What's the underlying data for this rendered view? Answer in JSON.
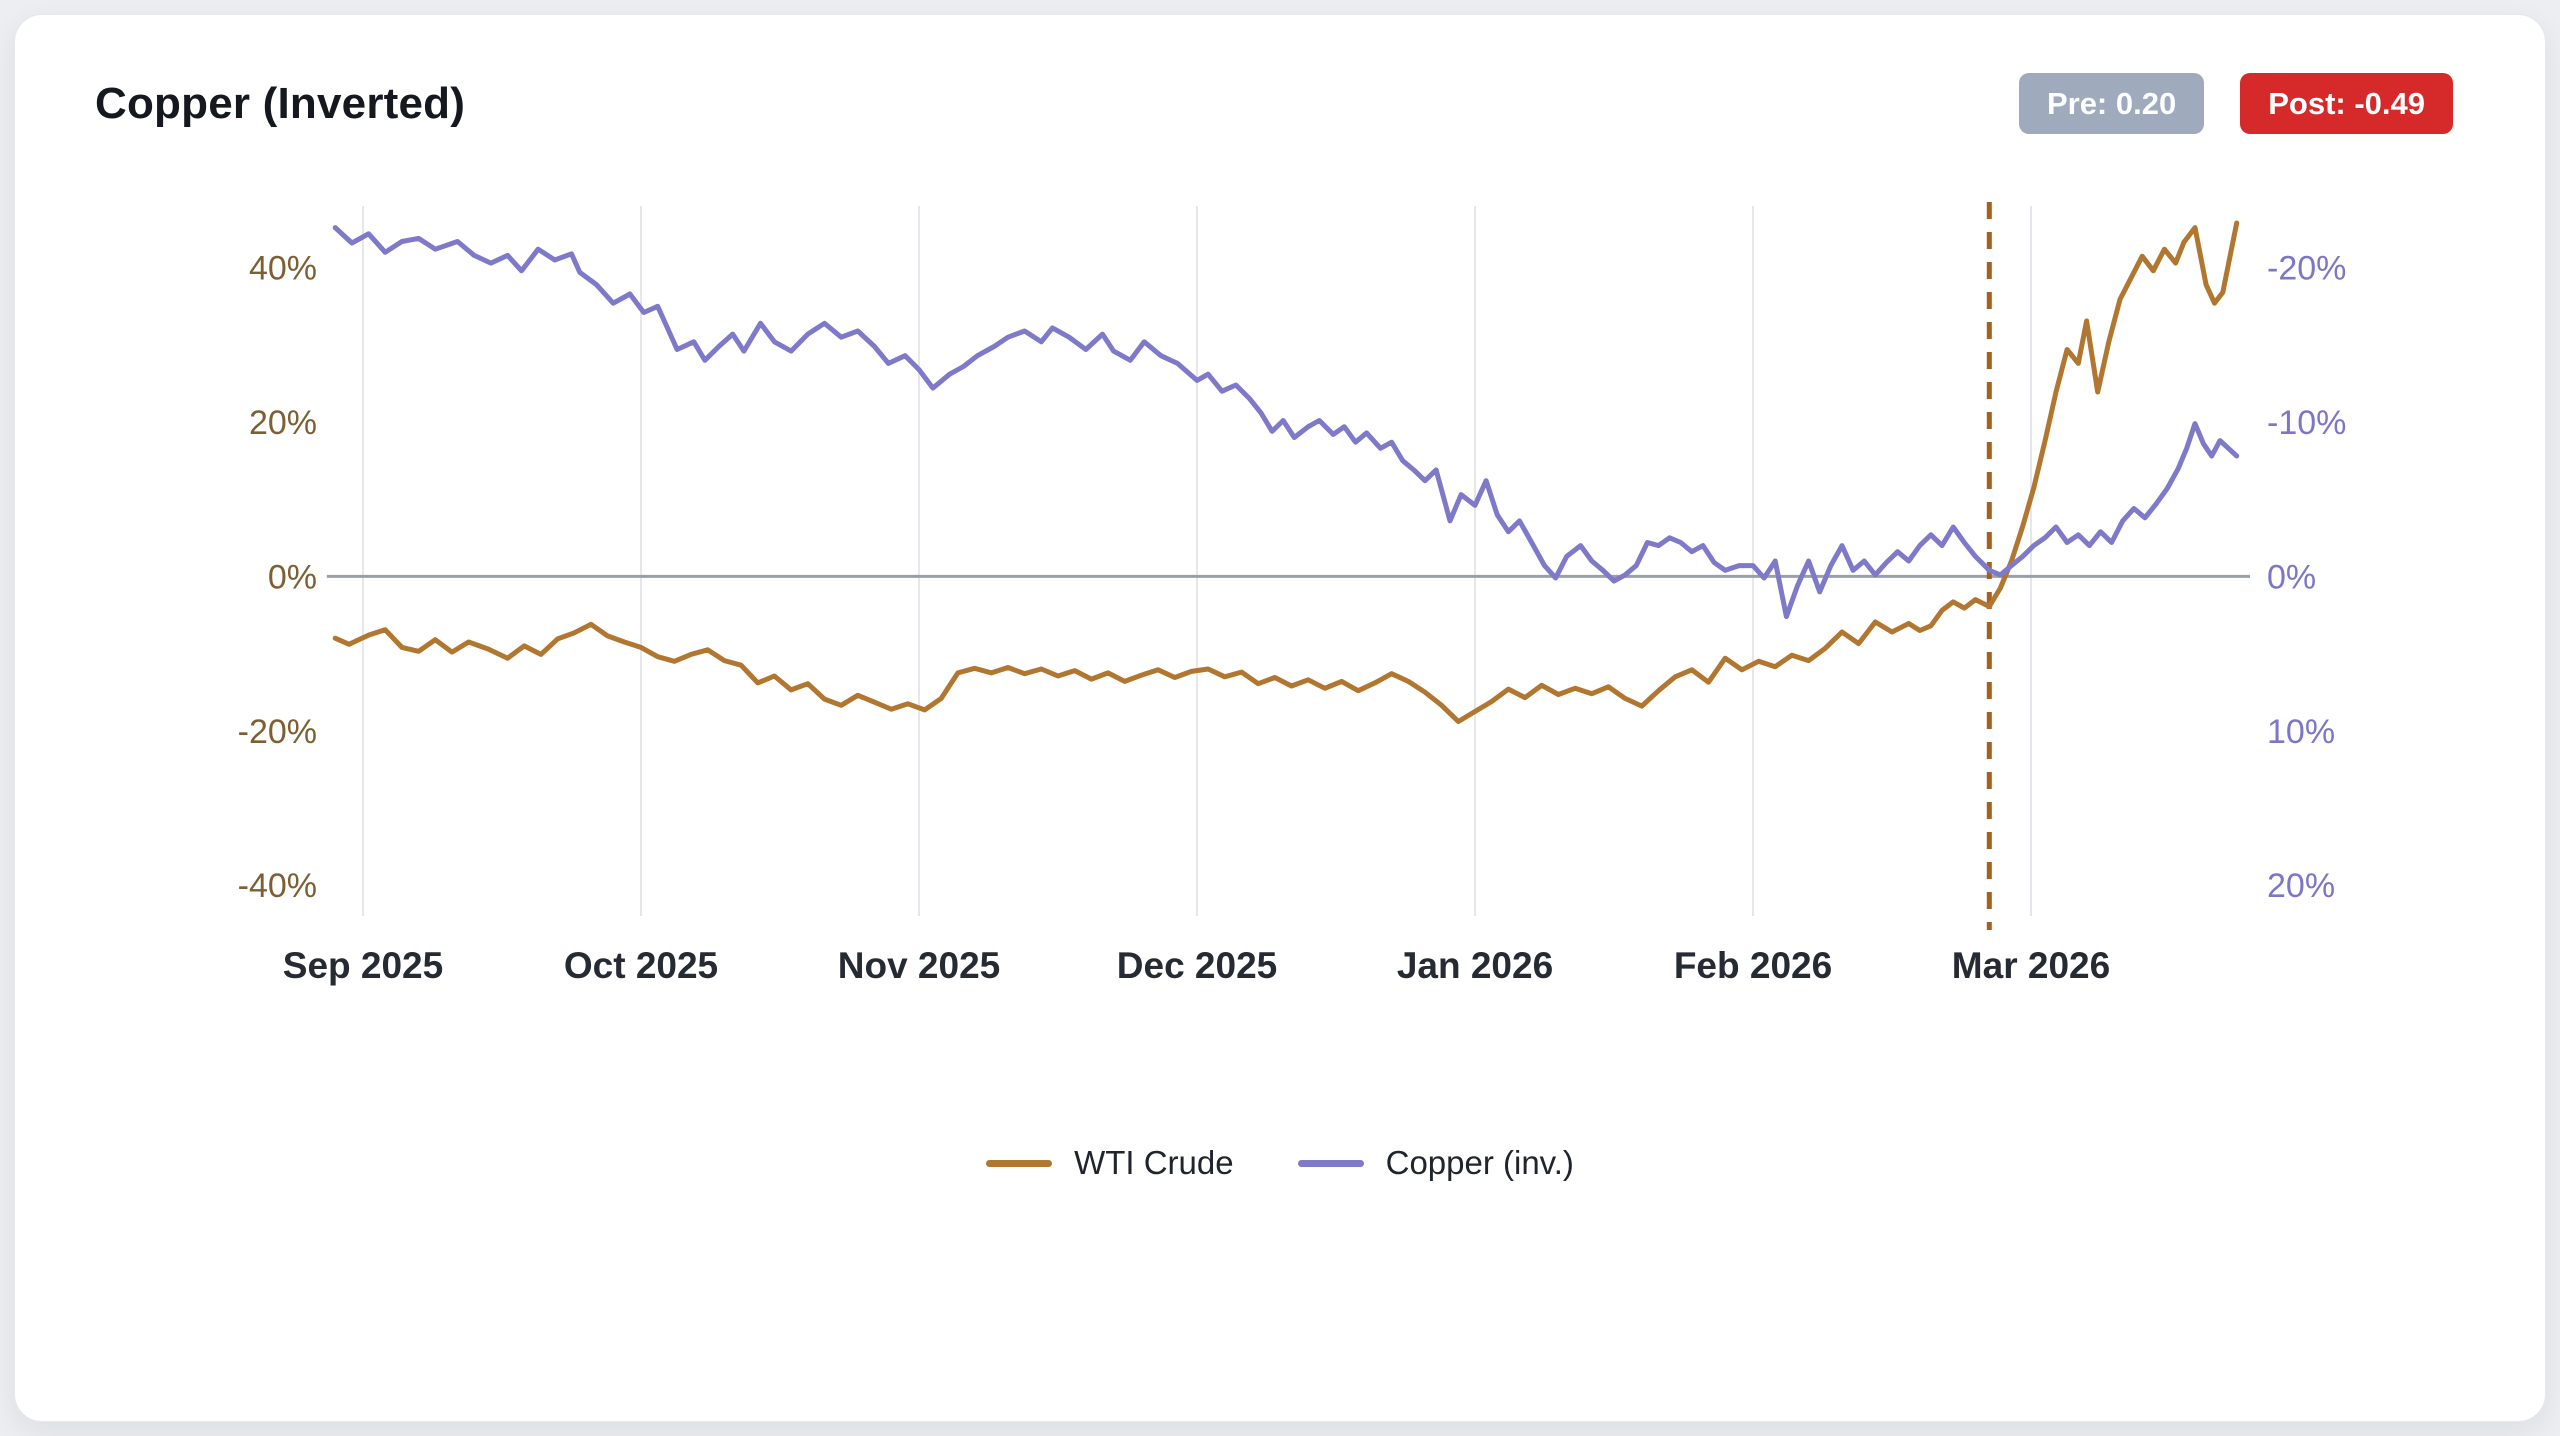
{
  "header": {
    "title": "Copper (Inverted)",
    "pre_badge": "Pre: 0.20",
    "post_badge": "Post: -0.49"
  },
  "legend": {
    "items": [
      {
        "label": "WTI Crude",
        "color": "#b1762f"
      },
      {
        "label": "Copper (inv.)",
        "color": "#7f79ca"
      }
    ]
  },
  "colors": {
    "grid": "#e4e7ec",
    "zero_line": "#9aa0a8",
    "x_tick_text": "#252a33",
    "left_tick_text": "#7e5f33",
    "right_tick_text": "#7c76c6",
    "badge_pre_bg": "#9fabbc",
    "badge_post_bg": "#d62a2a"
  },
  "chart_data": {
    "type": "line",
    "title": "Copper (Inverted)",
    "x_unit": "months since Sep 2025 tick",
    "x_range": [
      -0.13,
      6.78
    ],
    "x_ticks": [
      {
        "x": 0,
        "label": "Sep 2025"
      },
      {
        "x": 1,
        "label": "Oct 2025"
      },
      {
        "x": 2,
        "label": "Nov 2025"
      },
      {
        "x": 3,
        "label": "Dec 2025"
      },
      {
        "x": 4,
        "label": "Jan 2026"
      },
      {
        "x": 5,
        "label": "Feb 2026"
      },
      {
        "x": 6,
        "label": "Mar 2026"
      }
    ],
    "left_axis": {
      "range": [
        -44,
        48
      ],
      "ticks": [
        {
          "v": 40,
          "label": "40%"
        },
        {
          "v": 20,
          "label": "20%"
        },
        {
          "v": 0,
          "label": "0%"
        },
        {
          "v": -20,
          "label": "-20%"
        },
        {
          "v": -40,
          "label": "-40%"
        }
      ]
    },
    "right_axis": {
      "inverted": true,
      "scale_vs_left": -0.5,
      "ticks": [
        {
          "v": -20,
          "label": "-20%"
        },
        {
          "v": -10,
          "label": "-10%"
        },
        {
          "v": 0,
          "label": "0%"
        },
        {
          "v": 10,
          "label": "10%"
        },
        {
          "v": 20,
          "label": "20%"
        }
      ]
    },
    "zero_line": true,
    "event_line": {
      "x": 5.85,
      "style": "dashed",
      "color": "#a2611d"
    },
    "series": [
      {
        "name": "WTI Crude",
        "axis": "left",
        "color": "#b1762f",
        "points": [
          [
            -0.1,
            -8.0
          ],
          [
            -0.05,
            -8.8
          ],
          [
            0.02,
            -7.6
          ],
          [
            0.08,
            -6.9
          ],
          [
            0.14,
            -9.2
          ],
          [
            0.2,
            -9.7
          ],
          [
            0.26,
            -8.2
          ],
          [
            0.32,
            -9.8
          ],
          [
            0.38,
            -8.5
          ],
          [
            0.45,
            -9.4
          ],
          [
            0.52,
            -10.6
          ],
          [
            0.58,
            -9.0
          ],
          [
            0.64,
            -10.1
          ],
          [
            0.7,
            -8.1
          ],
          [
            0.76,
            -7.3
          ],
          [
            0.82,
            -6.2
          ],
          [
            0.88,
            -7.7
          ],
          [
            0.94,
            -8.5
          ],
          [
            1.0,
            -9.2
          ],
          [
            1.06,
            -10.4
          ],
          [
            1.12,
            -11.0
          ],
          [
            1.18,
            -10.1
          ],
          [
            1.24,
            -9.5
          ],
          [
            1.3,
            -10.9
          ],
          [
            1.36,
            -11.5
          ],
          [
            1.42,
            -13.8
          ],
          [
            1.48,
            -12.9
          ],
          [
            1.54,
            -14.7
          ],
          [
            1.6,
            -13.9
          ],
          [
            1.66,
            -15.9
          ],
          [
            1.72,
            -16.7
          ],
          [
            1.78,
            -15.4
          ],
          [
            1.84,
            -16.3
          ],
          [
            1.9,
            -17.2
          ],
          [
            1.96,
            -16.5
          ],
          [
            2.02,
            -17.3
          ],
          [
            2.08,
            -15.8
          ],
          [
            2.14,
            -12.5
          ],
          [
            2.2,
            -11.9
          ],
          [
            2.26,
            -12.5
          ],
          [
            2.32,
            -11.8
          ],
          [
            2.38,
            -12.6
          ],
          [
            2.44,
            -12.0
          ],
          [
            2.5,
            -12.9
          ],
          [
            2.56,
            -12.2
          ],
          [
            2.62,
            -13.3
          ],
          [
            2.68,
            -12.5
          ],
          [
            2.74,
            -13.6
          ],
          [
            2.8,
            -12.8
          ],
          [
            2.86,
            -12.1
          ],
          [
            2.92,
            -13.1
          ],
          [
            2.98,
            -12.3
          ],
          [
            3.04,
            -12.0
          ],
          [
            3.1,
            -13.0
          ],
          [
            3.16,
            -12.4
          ],
          [
            3.22,
            -13.9
          ],
          [
            3.28,
            -13.1
          ],
          [
            3.34,
            -14.2
          ],
          [
            3.4,
            -13.4
          ],
          [
            3.46,
            -14.5
          ],
          [
            3.52,
            -13.6
          ],
          [
            3.58,
            -14.8
          ],
          [
            3.64,
            -13.8
          ],
          [
            3.7,
            -12.6
          ],
          [
            3.76,
            -13.6
          ],
          [
            3.82,
            -15.0
          ],
          [
            3.88,
            -16.7
          ],
          [
            3.94,
            -18.8
          ],
          [
            4.0,
            -17.5
          ],
          [
            4.06,
            -16.2
          ],
          [
            4.12,
            -14.6
          ],
          [
            4.18,
            -15.7
          ],
          [
            4.24,
            -14.1
          ],
          [
            4.3,
            -15.3
          ],
          [
            4.36,
            -14.5
          ],
          [
            4.42,
            -15.2
          ],
          [
            4.48,
            -14.3
          ],
          [
            4.54,
            -15.8
          ],
          [
            4.6,
            -16.8
          ],
          [
            4.66,
            -14.8
          ],
          [
            4.72,
            -13.0
          ],
          [
            4.78,
            -12.1
          ],
          [
            4.84,
            -13.7
          ],
          [
            4.9,
            -10.6
          ],
          [
            4.96,
            -12.1
          ],
          [
            5.02,
            -11.0
          ],
          [
            5.08,
            -11.7
          ],
          [
            5.14,
            -10.2
          ],
          [
            5.2,
            -10.9
          ],
          [
            5.26,
            -9.3
          ],
          [
            5.32,
            -7.2
          ],
          [
            5.38,
            -8.7
          ],
          [
            5.44,
            -5.9
          ],
          [
            5.5,
            -7.2
          ],
          [
            5.56,
            -6.1
          ],
          [
            5.6,
            -7.0
          ],
          [
            5.64,
            -6.4
          ],
          [
            5.68,
            -4.4
          ],
          [
            5.72,
            -3.3
          ],
          [
            5.76,
            -4.1
          ],
          [
            5.8,
            -3.0
          ],
          [
            5.85,
            -3.9
          ],
          [
            5.89,
            -1.5
          ],
          [
            5.93,
            2.0
          ],
          [
            5.97,
            6.5
          ],
          [
            6.01,
            11.5
          ],
          [
            6.05,
            17.5
          ],
          [
            6.09,
            23.9
          ],
          [
            6.13,
            29.4
          ],
          [
            6.17,
            27.6
          ],
          [
            6.2,
            33.1
          ],
          [
            6.24,
            23.9
          ],
          [
            6.28,
            30.4
          ],
          [
            6.32,
            35.9
          ],
          [
            6.36,
            38.7
          ],
          [
            6.4,
            41.5
          ],
          [
            6.44,
            39.6
          ],
          [
            6.48,
            42.4
          ],
          [
            6.52,
            40.6
          ],
          [
            6.55,
            43.3
          ],
          [
            6.59,
            45.2
          ],
          [
            6.63,
            37.8
          ],
          [
            6.66,
            35.4
          ],
          [
            6.69,
            36.8
          ],
          [
            6.74,
            45.8
          ]
        ]
      },
      {
        "name": "Copper (inv.)",
        "axis": "right",
        "color": "#7f79ca",
        "points": [
          [
            -0.1,
            -22.6
          ],
          [
            -0.04,
            -21.6
          ],
          [
            0.02,
            -22.2
          ],
          [
            0.08,
            -21.0
          ],
          [
            0.14,
            -21.7
          ],
          [
            0.2,
            -21.9
          ],
          [
            0.26,
            -21.2
          ],
          [
            0.34,
            -21.7
          ],
          [
            0.4,
            -20.8
          ],
          [
            0.46,
            -20.3
          ],
          [
            0.52,
            -20.8
          ],
          [
            0.57,
            -19.8
          ],
          [
            0.63,
            -21.2
          ],
          [
            0.69,
            -20.5
          ],
          [
            0.75,
            -20.9
          ],
          [
            0.78,
            -19.7
          ],
          [
            0.84,
            -18.9
          ],
          [
            0.9,
            -17.7
          ],
          [
            0.96,
            -18.3
          ],
          [
            1.01,
            -17.1
          ],
          [
            1.06,
            -17.5
          ],
          [
            1.1,
            -15.9
          ],
          [
            1.13,
            -14.7
          ],
          [
            1.19,
            -15.2
          ],
          [
            1.23,
            -14.0
          ],
          [
            1.28,
            -14.9
          ],
          [
            1.33,
            -15.7
          ],
          [
            1.37,
            -14.6
          ],
          [
            1.43,
            -16.4
          ],
          [
            1.48,
            -15.2
          ],
          [
            1.54,
            -14.6
          ],
          [
            1.6,
            -15.7
          ],
          [
            1.66,
            -16.4
          ],
          [
            1.72,
            -15.5
          ],
          [
            1.78,
            -15.9
          ],
          [
            1.84,
            -14.9
          ],
          [
            1.89,
            -13.8
          ],
          [
            1.95,
            -14.3
          ],
          [
            2.0,
            -13.4
          ],
          [
            2.05,
            -12.2
          ],
          [
            2.11,
            -13.1
          ],
          [
            2.16,
            -13.6
          ],
          [
            2.21,
            -14.3
          ],
          [
            2.27,
            -14.9
          ],
          [
            2.32,
            -15.5
          ],
          [
            2.38,
            -15.9
          ],
          [
            2.44,
            -15.2
          ],
          [
            2.48,
            -16.1
          ],
          [
            2.54,
            -15.5
          ],
          [
            2.6,
            -14.7
          ],
          [
            2.66,
            -15.7
          ],
          [
            2.7,
            -14.6
          ],
          [
            2.76,
            -14.0
          ],
          [
            2.81,
            -15.2
          ],
          [
            2.87,
            -14.3
          ],
          [
            2.93,
            -13.8
          ],
          [
            3.0,
            -12.7
          ],
          [
            3.04,
            -13.1
          ],
          [
            3.09,
            -12.0
          ],
          [
            3.14,
            -12.4
          ],
          [
            3.19,
            -11.5
          ],
          [
            3.23,
            -10.6
          ],
          [
            3.27,
            -9.4
          ],
          [
            3.31,
            -10.1
          ],
          [
            3.35,
            -9.0
          ],
          [
            3.4,
            -9.7
          ],
          [
            3.44,
            -10.1
          ],
          [
            3.49,
            -9.2
          ],
          [
            3.53,
            -9.7
          ],
          [
            3.57,
            -8.7
          ],
          [
            3.61,
            -9.3
          ],
          [
            3.66,
            -8.3
          ],
          [
            3.7,
            -8.7
          ],
          [
            3.74,
            -7.5
          ],
          [
            3.78,
            -6.9
          ],
          [
            3.82,
            -6.2
          ],
          [
            3.86,
            -6.9
          ],
          [
            3.91,
            -3.6
          ],
          [
            3.95,
            -5.3
          ],
          [
            4.0,
            -4.6
          ],
          [
            4.04,
            -6.2
          ],
          [
            4.08,
            -4.0
          ],
          [
            4.12,
            -2.9
          ],
          [
            4.16,
            -3.6
          ],
          [
            4.21,
            -2.0
          ],
          [
            4.25,
            -0.7
          ],
          [
            4.29,
            0.1
          ],
          [
            4.33,
            -1.3
          ],
          [
            4.38,
            -2.0
          ],
          [
            4.42,
            -1.0
          ],
          [
            4.46,
            -0.4
          ],
          [
            4.5,
            0.3
          ],
          [
            4.54,
            -0.1
          ],
          [
            4.58,
            -0.7
          ],
          [
            4.62,
            -2.2
          ],
          [
            4.66,
            -2.0
          ],
          [
            4.7,
            -2.5
          ],
          [
            4.74,
            -2.2
          ],
          [
            4.78,
            -1.6
          ],
          [
            4.82,
            -2.0
          ],
          [
            4.86,
            -0.9
          ],
          [
            4.9,
            -0.4
          ],
          [
            4.95,
            -0.7
          ],
          [
            5.0,
            -0.7
          ],
          [
            5.04,
            0.1
          ],
          [
            5.08,
            -1.0
          ],
          [
            5.12,
            2.6
          ],
          [
            5.16,
            0.6
          ],
          [
            5.2,
            -1.0
          ],
          [
            5.24,
            1.0
          ],
          [
            5.28,
            -0.7
          ],
          [
            5.32,
            -2.0
          ],
          [
            5.36,
            -0.4
          ],
          [
            5.4,
            -1.0
          ],
          [
            5.44,
            -0.1
          ],
          [
            5.48,
            -0.9
          ],
          [
            5.52,
            -1.6
          ],
          [
            5.56,
            -1.0
          ],
          [
            5.6,
            -2.0
          ],
          [
            5.64,
            -2.7
          ],
          [
            5.68,
            -2.0
          ],
          [
            5.72,
            -3.2
          ],
          [
            5.76,
            -2.2
          ],
          [
            5.8,
            -1.3
          ],
          [
            5.85,
            -0.4
          ],
          [
            5.89,
            -0.1
          ],
          [
            5.93,
            -0.7
          ],
          [
            5.97,
            -1.3
          ],
          [
            6.01,
            -2.0
          ],
          [
            6.05,
            -2.5
          ],
          [
            6.09,
            -3.2
          ],
          [
            6.13,
            -2.2
          ],
          [
            6.17,
            -2.7
          ],
          [
            6.21,
            -2.0
          ],
          [
            6.25,
            -2.9
          ],
          [
            6.29,
            -2.2
          ],
          [
            6.33,
            -3.6
          ],
          [
            6.37,
            -4.4
          ],
          [
            6.41,
            -3.8
          ],
          [
            6.45,
            -4.7
          ],
          [
            6.49,
            -5.7
          ],
          [
            6.53,
            -7.0
          ],
          [
            6.56,
            -8.3
          ],
          [
            6.59,
            -9.9
          ],
          [
            6.62,
            -8.6
          ],
          [
            6.65,
            -7.8
          ],
          [
            6.68,
            -8.8
          ],
          [
            6.71,
            -8.3
          ],
          [
            6.74,
            -7.8
          ]
        ]
      }
    ]
  }
}
